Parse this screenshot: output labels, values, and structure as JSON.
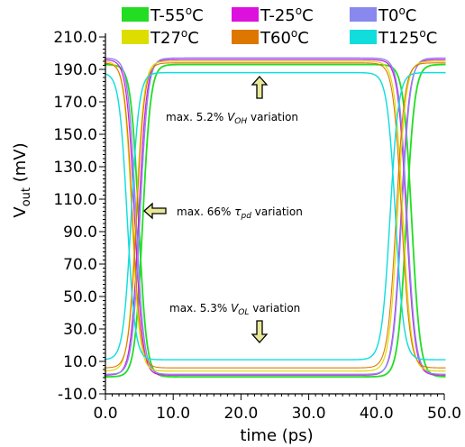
{
  "chart_data": {
    "type": "line",
    "xlabel": "time (ps)",
    "ylabel": "Vout (mV)",
    "xlim": [
      0,
      50
    ],
    "ylim": [
      -10,
      210
    ],
    "x_ticks": [
      "0.0",
      "10.0",
      "20.0",
      "30.0",
      "40.0",
      "50.0"
    ],
    "y_ticks": [
      "-10.0",
      "10.0",
      "30.0",
      "50.0",
      "70.0",
      "90.0",
      "110.0",
      "130.0",
      "150.0",
      "170.0",
      "190.0",
      "210.0"
    ],
    "legend": {
      "placement": "top",
      "columns": 3
    },
    "series": [
      {
        "name": "T-55oC",
        "color": "#22dd22",
        "voh": 193,
        "vol": 0.5,
        "t_fall": 4.9,
        "t_rise": 44.4,
        "width": 3.0
      },
      {
        "name": "T-25oC",
        "color": "#dd11dd",
        "voh": 196,
        "vol": 1.5,
        "t_fall": 4.3,
        "t_rise": 43.6,
        "width": 2.0
      },
      {
        "name": "T0oC",
        "color": "#8888ee",
        "voh": 197,
        "vol": 2.0,
        "t_fall": 4.5,
        "t_rise": 43.7,
        "width": 2.4
      },
      {
        "name": "T27oC",
        "color": "#dddd00",
        "voh": 195,
        "vol": 4.0,
        "t_fall": 3.9,
        "t_rise": 43.1,
        "width": 2.0
      },
      {
        "name": "T60oC",
        "color": "#dd7700",
        "voh": 194,
        "vol": 6.0,
        "t_fall": 4.0,
        "t_rise": 42.9,
        "width": 1.8
      },
      {
        "name": "T125oC",
        "color": "#11dddd",
        "voh": 188,
        "vol": 11.0,
        "t_fall": 3.2,
        "t_rise": 42.0,
        "width": 2.4
      }
    ],
    "annotations": [
      {
        "text_main": "max. 5.2% ",
        "symbol": "V",
        "sub": "OH",
        "text_tail": " variation",
        "arrow": "up"
      },
      {
        "text_main": "max. 66% ",
        "symbol": "τ",
        "sub": "pd",
        "text_tail": " variation",
        "arrow": "left"
      },
      {
        "text_main": "max. 5.3% ",
        "symbol": "V",
        "sub": "OL",
        "text_tail": " variation",
        "arrow": "down"
      }
    ]
  }
}
